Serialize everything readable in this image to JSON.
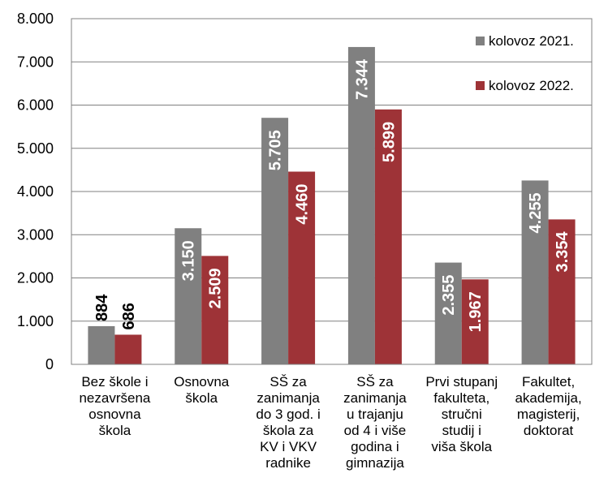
{
  "chart_data": {
    "type": "bar",
    "categories": [
      [
        "Bez škole i",
        "nezavršena",
        "osnovna",
        "škola"
      ],
      [
        "Osnovna",
        "škola"
      ],
      [
        "SŠ za",
        "zanimanja",
        "do 3 god. i",
        "škola za",
        "KV i VKV",
        "radnike"
      ],
      [
        "SŠ za",
        "zanimanja",
        "u trajanju",
        "od 4 i više",
        "godina i",
        "gimnazija"
      ],
      [
        "Prvi stupanj",
        "fakulteta,",
        "stručni",
        "studij i",
        "viša škola"
      ],
      [
        "Fakultet,",
        "akademija,",
        "magisterij,",
        "doktorat"
      ]
    ],
    "series": [
      {
        "name": "kolovoz 2021.",
        "color": "#808080",
        "values": [
          884,
          3150,
          5705,
          7344,
          2355,
          4255
        ],
        "labels": [
          "884",
          "3.150",
          "5.705",
          "7.344",
          "2.355",
          "4.255"
        ]
      },
      {
        "name": "kolovoz 2022.",
        "color": "#9e3337",
        "values": [
          686,
          2509,
          4460,
          5899,
          1967,
          3354
        ],
        "labels": [
          "686",
          "2.509",
          "4.460",
          "5.899",
          "1.967",
          "3.354"
        ]
      }
    ],
    "y_ticks": [
      {
        "value": 0,
        "label": "0"
      },
      {
        "value": 1000,
        "label": "1.000"
      },
      {
        "value": 2000,
        "label": "2.000"
      },
      {
        "value": 3000,
        "label": "3.000"
      },
      {
        "value": 4000,
        "label": "4.000"
      },
      {
        "value": 5000,
        "label": "5.000"
      },
      {
        "value": 6000,
        "label": "6.000"
      },
      {
        "value": 7000,
        "label": "7.000"
      },
      {
        "value": 8000,
        "label": "8.000"
      }
    ],
    "ylim": [
      0,
      8000
    ],
    "grid": true,
    "legend_position": "top-right",
    "title": "",
    "xlabel": "",
    "ylabel": ""
  }
}
